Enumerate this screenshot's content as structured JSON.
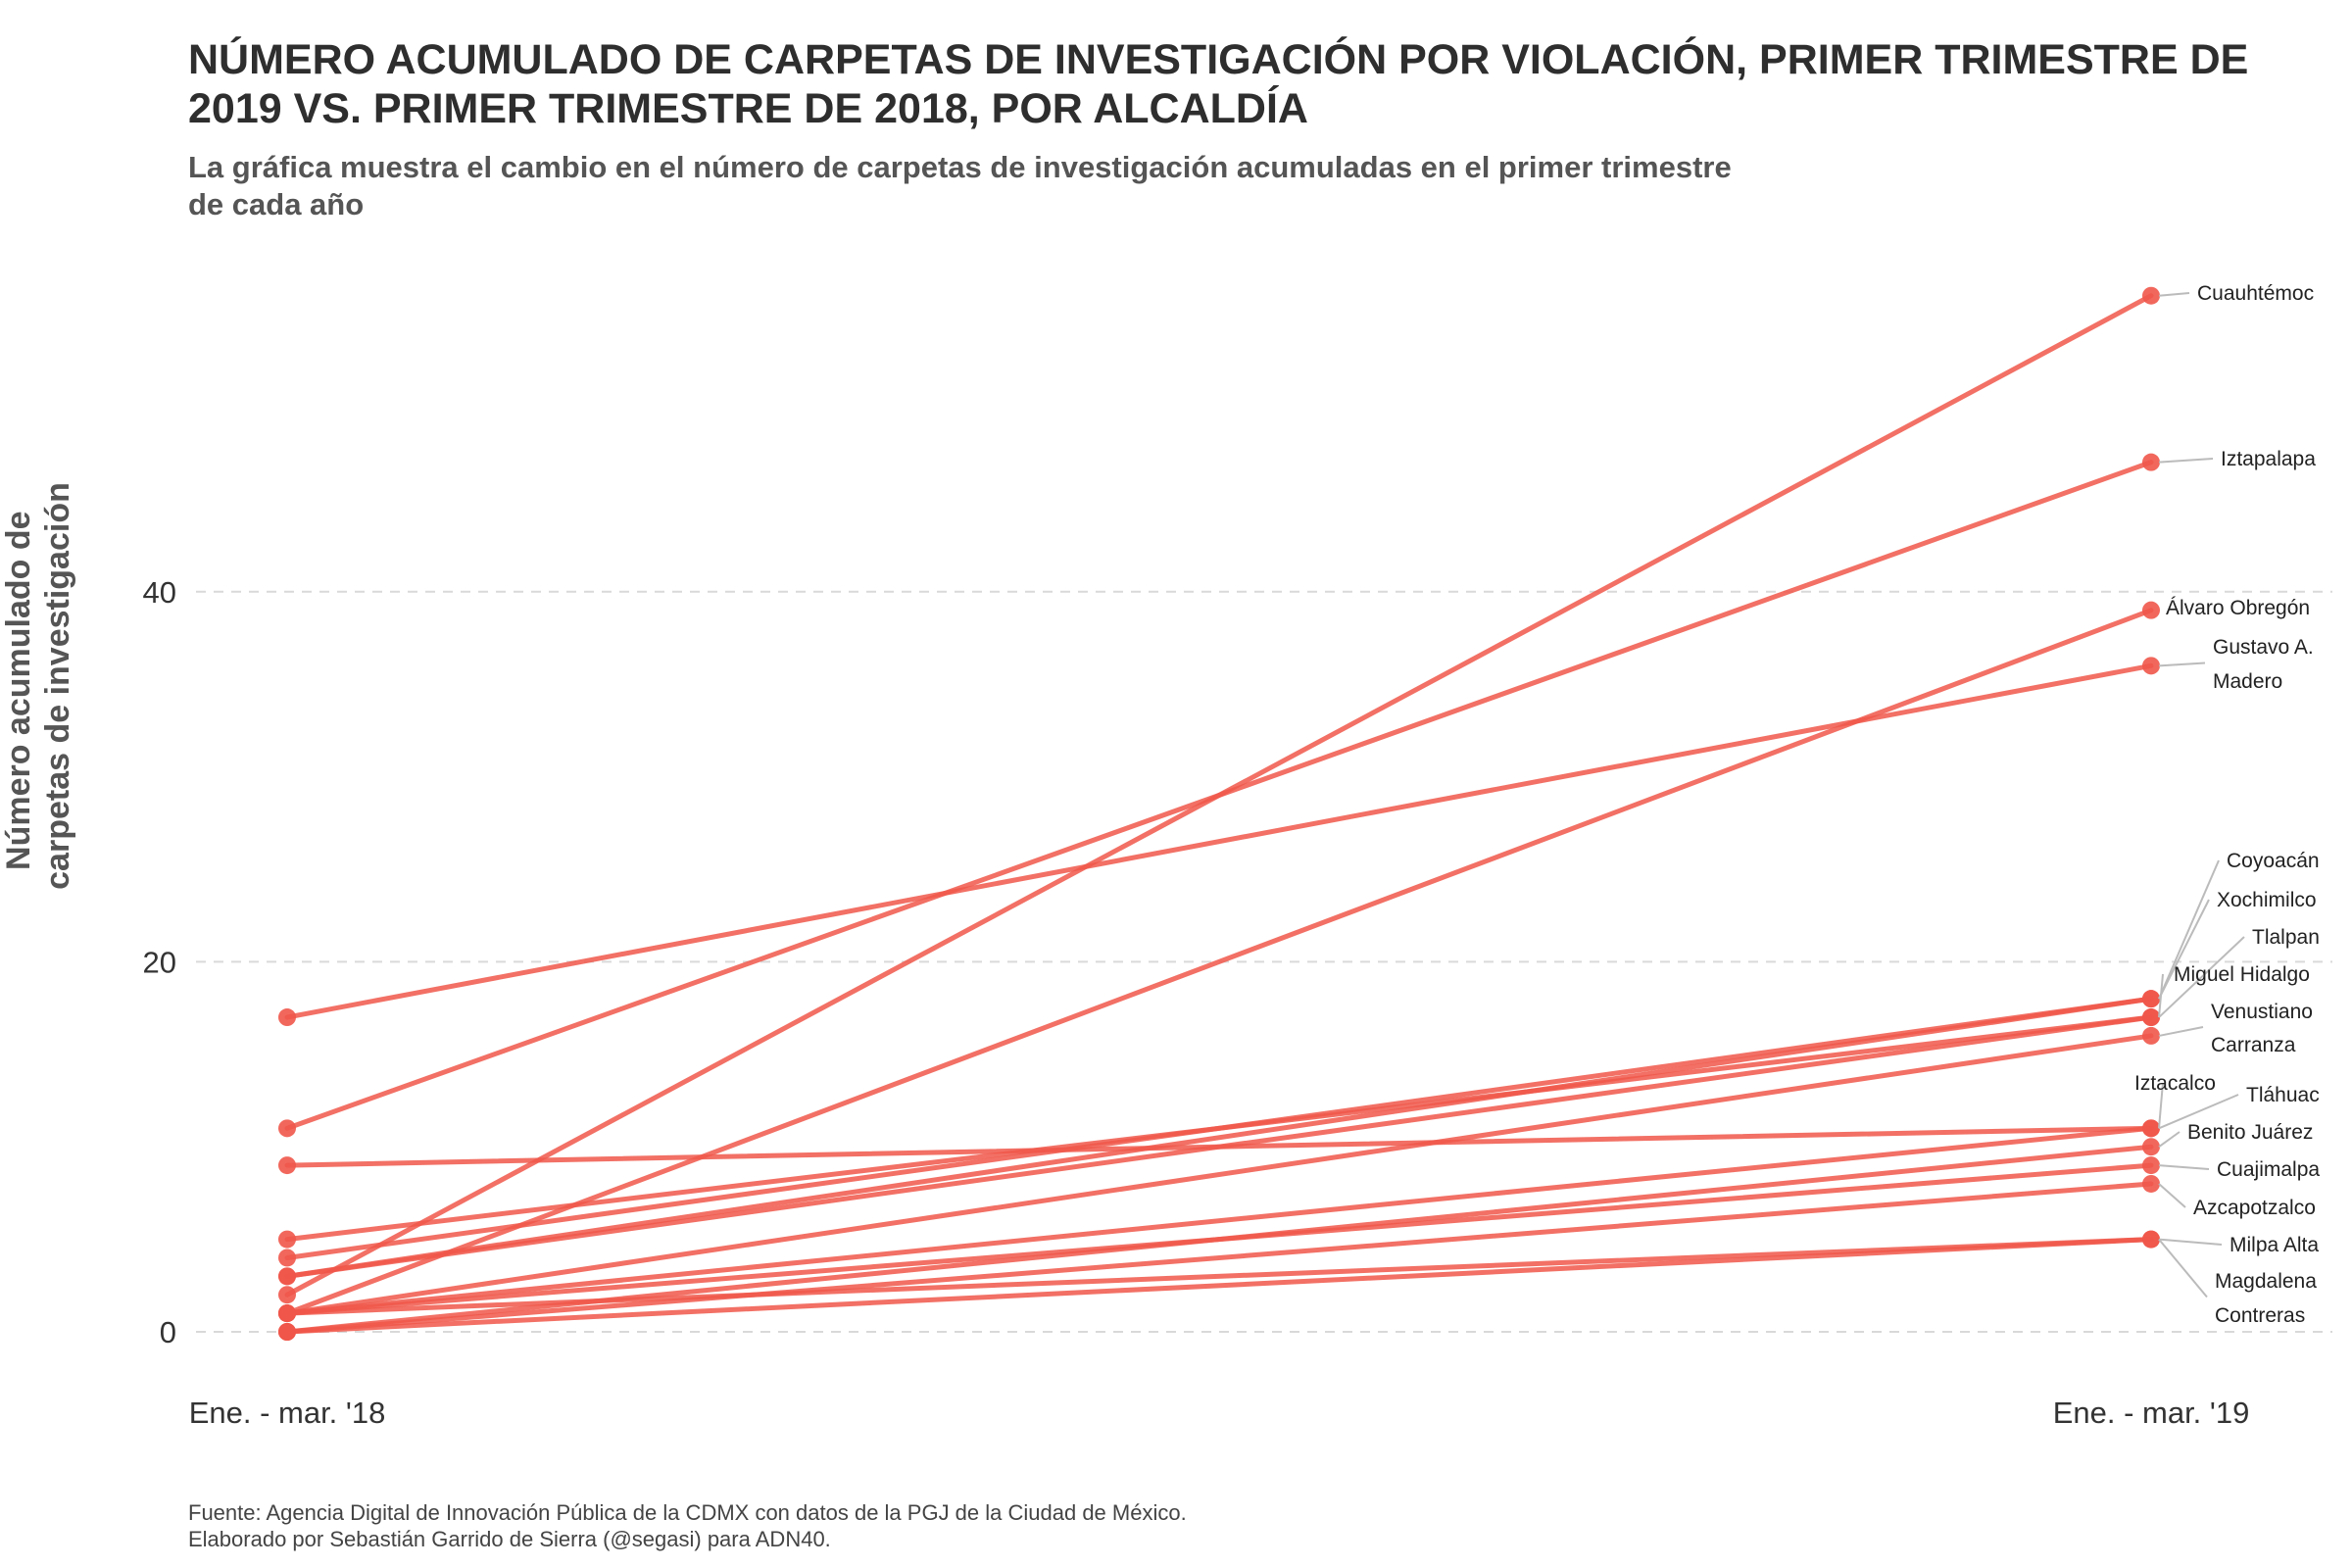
{
  "title": "NÚMERO ACUMULADO DE CARPETAS DE INVESTIGACIÓN POR VIOLACIÓN, PRIMER TRIMESTRE DE 2019 VS. PRIMER TRIMESTRE DE 2018, POR ALCALDÍA",
  "subtitle": "La gráfica muestra el cambio en el número de carpetas de investigación acumuladas en el primer trimestre de cada año",
  "caption": {
    "line1": "Fuente: Agencia Digital de Innovación Pública de la CDMX con datos de la PGJ de la Ciudad de México.",
    "line2": "Elaborado por Sebastián Garrido de Sierra (@segasi) para ADN40."
  },
  "colors": {
    "series": "#f0574a",
    "grid": "#d9d9d9",
    "leader": "#bbbbbb"
  },
  "chart_data": {
    "type": "line",
    "x": [
      "Ene. - mar. '18",
      "Ene. - mar. '19"
    ],
    "ylabel": "Número acumulado de carpetas de investigación",
    "ylim": [
      0,
      56
    ],
    "yticks": [
      0,
      20,
      40
    ],
    "grid": "horizontal dashed",
    "legend": "none",
    "series": [
      {
        "name": "Cuauhtémoc",
        "values": [
          2,
          56
        ]
      },
      {
        "name": "Iztapalapa",
        "values": [
          11,
          47
        ]
      },
      {
        "name": "Álvaro Obregón",
        "values": [
          1,
          39
        ]
      },
      {
        "name": "Gustavo A. Madero",
        "values": [
          17,
          36
        ]
      },
      {
        "name": "Coyoacán",
        "values": [
          4,
          18
        ]
      },
      {
        "name": "Xochimilco",
        "values": [
          3,
          18
        ]
      },
      {
        "name": "Tlalpan",
        "values": [
          5,
          17
        ]
      },
      {
        "name": "Miguel Hidalgo",
        "values": [
          3,
          17
        ]
      },
      {
        "name": "Venustiano Carranza",
        "values": [
          1,
          16
        ]
      },
      {
        "name": "Iztacalco",
        "values": [
          9,
          11
        ]
      },
      {
        "name": "Tláhuac",
        "values": [
          1,
          11
        ]
      },
      {
        "name": "Benito Juárez",
        "values": [
          0,
          10
        ]
      },
      {
        "name": "Cuajimalpa",
        "values": [
          1,
          9
        ]
      },
      {
        "name": "Azcapotzalco",
        "values": [
          0,
          8
        ]
      },
      {
        "name": "Milpa Alta",
        "values": [
          0,
          5
        ]
      },
      {
        "name": "Magdalena Contreras",
        "values": [
          1,
          5
        ]
      }
    ]
  }
}
